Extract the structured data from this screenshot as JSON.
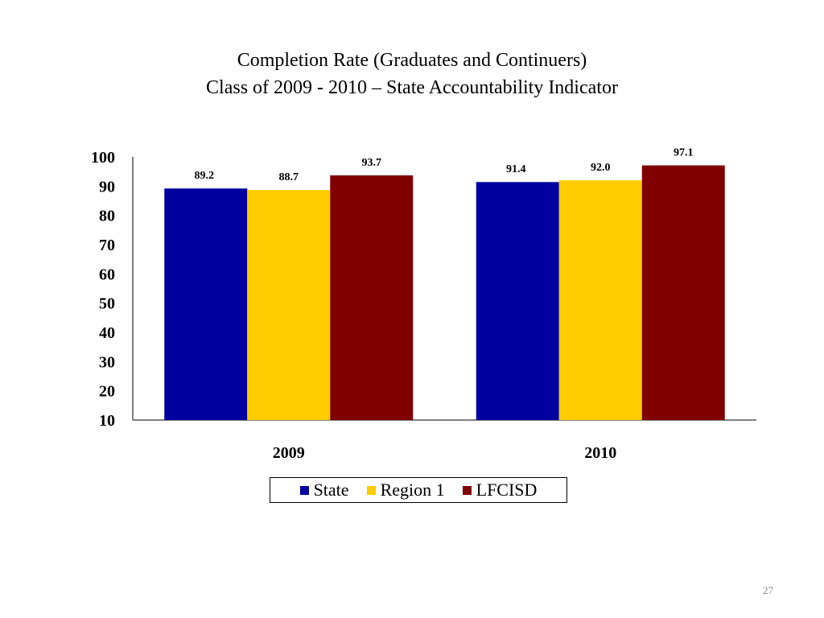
{
  "slide": {
    "title_line1": "Completion Rate (Graduates and Continuers)",
    "title_line2": "Class of 2009 - 2010 – State Accountability Indicator",
    "page_number": "27"
  },
  "chart_data": {
    "type": "bar",
    "categories": [
      "2009",
      "2010"
    ],
    "series": [
      {
        "name": "State",
        "color": "#0000A0",
        "values": [
          89.2,
          91.4
        ],
        "labels": [
          "89.2",
          "91.4"
        ]
      },
      {
        "name": "Region 1",
        "color": "#FFCC00",
        "values": [
          88.7,
          92.0
        ],
        "labels": [
          "88.7",
          "92.0"
        ]
      },
      {
        "name": "LFCISD",
        "color": "#800000",
        "values": [
          93.7,
          97.1
        ],
        "labels": [
          "93.7",
          "97.1"
        ]
      }
    ],
    "title": "Completion Rate (Graduates and Continuers) Class of 2009 - 2010 – State Accountability Indicator",
    "xlabel": "",
    "ylabel": "",
    "ylim": [
      10,
      100
    ],
    "yticks": [
      "100",
      "90",
      "80",
      "70",
      "60",
      "50",
      "40",
      "30",
      "20",
      "10"
    ],
    "grid": false,
    "legend_position": "bottom"
  }
}
